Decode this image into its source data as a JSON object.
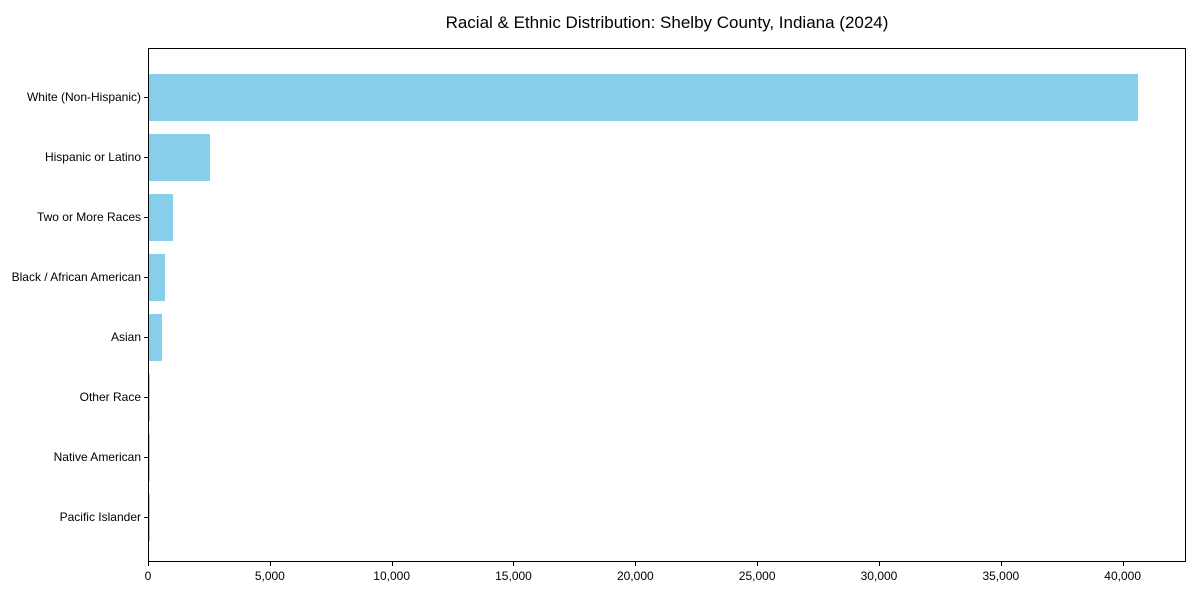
{
  "chart_data": {
    "type": "bar",
    "orientation": "horizontal",
    "title": "Racial & Ethnic Distribution: Shelby County, Indiana (2024)",
    "categories": [
      "White (Non-Hispanic)",
      "Hispanic or Latino",
      "Two or More Races",
      "Black / African American",
      "Asian",
      "Other Race",
      "Native American",
      "Pacific Islander"
    ],
    "values": [
      40600,
      2500,
      970,
      660,
      520,
      30,
      20,
      10
    ],
    "xlabel": "",
    "ylabel": "",
    "xlim": [
      0,
      42600
    ],
    "xticks": [
      0,
      5000,
      10000,
      15000,
      20000,
      25000,
      30000,
      35000,
      40000
    ],
    "xtick_labels": [
      "0",
      "5,000",
      "10,000",
      "15,000",
      "20,000",
      "25,000",
      "30,000",
      "35,000",
      "40,000"
    ],
    "bar_color": "#87CEEB",
    "axis_color": "#000000",
    "background_color": "#ffffff",
    "grid": false,
    "legend": null,
    "sort_order": "descending"
  }
}
